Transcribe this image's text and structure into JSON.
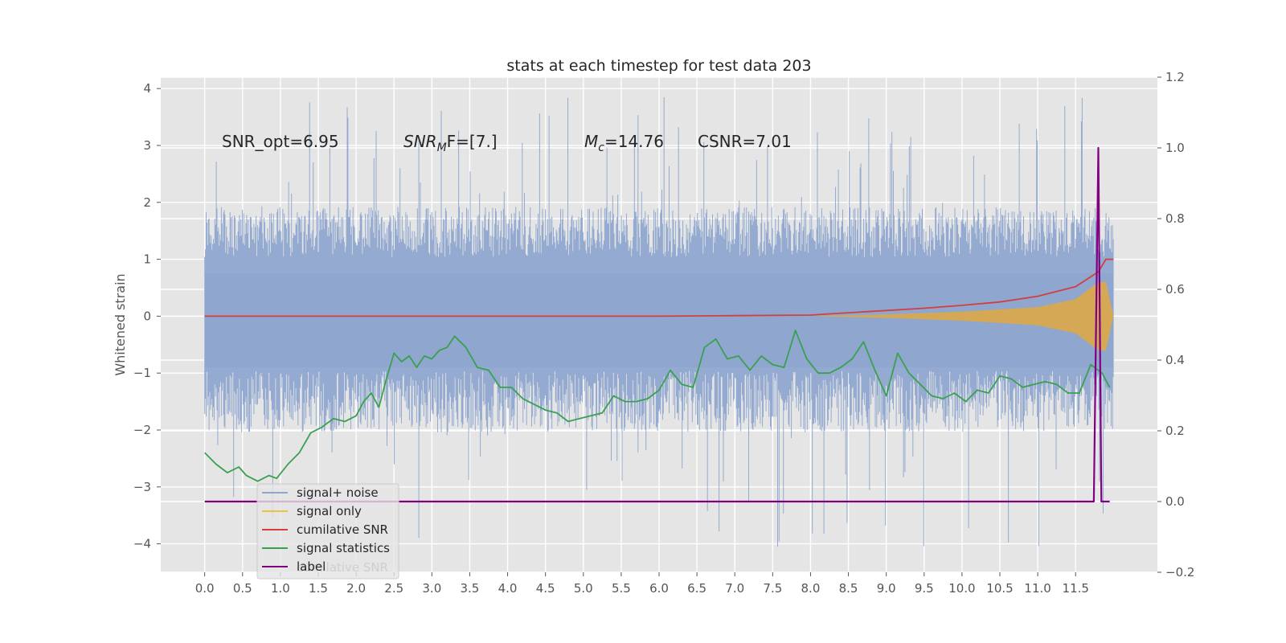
{
  "chart_data": {
    "type": "line",
    "title": "stats at each timestep for test data 203",
    "xlabel": "",
    "ylabel": "Whitened strain",
    "ylabel_right": "",
    "xlim": [
      -0.58,
      12.58
    ],
    "ylim": [
      -4.5,
      4.2
    ],
    "ylim_right": [
      -0.2,
      1.2
    ],
    "grid": true,
    "x_ticks": [
      "0.0",
      "0.5",
      "1.0",
      "1.5",
      "2.0",
      "2.5",
      "3.0",
      "3.5",
      "4.0",
      "4.5",
      "5.0",
      "5.5",
      "6.0",
      "6.5",
      "7.0",
      "7.5",
      "8.0",
      "8.5",
      "9.0",
      "9.5",
      "10.0",
      "10.5",
      "11.0",
      "11.5"
    ],
    "y_ticks_left": [
      "4",
      "3",
      "2",
      "1",
      "0",
      "−1",
      "−2",
      "−3",
      "−4"
    ],
    "y_ticks_right": [
      "1.2",
      "1.0",
      "0.8",
      "0.6",
      "0.4",
      "0.2",
      "0.0",
      "−0.2"
    ],
    "annotations": [
      {
        "text": "SNR_opt=6.95"
      },
      {
        "text": "SNR",
        "sub": "M",
        "tail": "F=[7.]"
      },
      {
        "text": "M",
        "sub": "c",
        "tail": "=14.76"
      },
      {
        "text": "CSNR=7.01"
      }
    ],
    "legend": {
      "placement": "lower-left",
      "items": [
        {
          "label": "signal+ noise",
          "color": "#8fa6cf"
        },
        {
          "label": "signal only",
          "color": "#f0c040"
        },
        {
          "label": "cumilative SNR",
          "color": "#d04040"
        },
        {
          "label": "signal statistics",
          "color": "#3aa050"
        },
        {
          "label": "label",
          "color": "#800080"
        }
      ],
      "ghost_text": "cumilative SNR"
    },
    "series": [
      {
        "name": "signal+ noise",
        "axis": "left",
        "color": "#8fa6cf",
        "x_range": [
          0.0,
          12.0
        ],
        "band_low": -1.2,
        "band_high": 1.6,
        "spike_max": 3.85,
        "spike_min": -4.1
      },
      {
        "name": "signal only",
        "axis": "left",
        "color": "#e0a840",
        "envelope": {
          "x": [
            8.0,
            9.0,
            10.0,
            11.0,
            11.5,
            11.8,
            11.9,
            12.0
          ],
          "amp": [
            0.0,
            0.03,
            0.08,
            0.16,
            0.3,
            0.6,
            0.6,
            0.0
          ]
        }
      },
      {
        "name": "cumilative SNR",
        "axis": "left",
        "color": "#d04040",
        "x": [
          0.0,
          6.0,
          7.0,
          8.0,
          8.5,
          9.0,
          9.5,
          10.0,
          10.5,
          11.0,
          11.5,
          11.8,
          11.9,
          12.0
        ],
        "y": [
          0.0,
          0.0,
          0.01,
          0.02,
          0.06,
          0.1,
          0.14,
          0.19,
          0.25,
          0.35,
          0.52,
          0.78,
          1.0,
          1.0
        ]
      },
      {
        "name": "signal statistics",
        "axis": "left",
        "color": "#3aa050",
        "x": [
          0.0,
          0.15,
          0.3,
          0.45,
          0.55,
          0.7,
          0.85,
          0.95,
          1.1,
          1.25,
          1.4,
          1.55,
          1.7,
          1.85,
          2.0,
          2.1,
          2.2,
          2.3,
          2.4,
          2.5,
          2.6,
          2.7,
          2.8,
          2.9,
          3.0,
          3.1,
          3.2,
          3.3,
          3.45,
          3.6,
          3.75,
          3.9,
          4.05,
          4.2,
          4.35,
          4.5,
          4.65,
          4.8,
          4.95,
          5.1,
          5.25,
          5.4,
          5.55,
          5.7,
          5.85,
          6.0,
          6.15,
          6.3,
          6.45,
          6.6,
          6.75,
          6.9,
          7.05,
          7.2,
          7.35,
          7.5,
          7.65,
          7.8,
          7.95,
          8.1,
          8.25,
          8.4,
          8.55,
          8.7,
          8.85,
          9.0,
          9.15,
          9.3,
          9.45,
          9.6,
          9.75,
          9.9,
          10.05,
          10.2,
          10.35,
          10.5,
          10.65,
          10.8,
          10.95,
          11.1,
          11.25,
          11.4,
          11.55,
          11.7,
          11.85,
          11.95
        ],
        "y": [
          -2.4,
          -2.6,
          -2.75,
          -2.65,
          -2.8,
          -2.9,
          -2.8,
          -2.85,
          -2.6,
          -2.4,
          -2.05,
          -1.95,
          -1.8,
          -1.85,
          -1.75,
          -1.5,
          -1.35,
          -1.6,
          -1.1,
          -0.65,
          -0.8,
          -0.7,
          -0.9,
          -0.7,
          -0.75,
          -0.6,
          -0.55,
          -0.35,
          -0.55,
          -0.9,
          -0.95,
          -1.25,
          -1.25,
          -1.45,
          -1.55,
          -1.65,
          -1.7,
          -1.85,
          -1.8,
          -1.75,
          -1.7,
          -1.4,
          -1.5,
          -1.5,
          -1.45,
          -1.3,
          -0.95,
          -1.2,
          -1.25,
          -0.55,
          -0.4,
          -0.75,
          -0.7,
          -0.95,
          -0.7,
          -0.85,
          -0.9,
          -0.25,
          -0.75,
          -1.0,
          -1.0,
          -0.9,
          -0.75,
          -0.45,
          -0.95,
          -1.4,
          -0.65,
          -1.0,
          -1.2,
          -1.4,
          -1.45,
          -1.35,
          -1.5,
          -1.3,
          -1.35,
          -1.05,
          -1.1,
          -1.25,
          -1.2,
          -1.15,
          -1.2,
          -1.35,
          -1.35,
          -0.85,
          -1.0,
          -1.25
        ]
      },
      {
        "name": "label",
        "axis": "right",
        "color": "#800080",
        "x": [
          0.0,
          11.74,
          11.8,
          11.84,
          11.87,
          11.95
        ],
        "y": [
          0.0,
          0.0,
          1.0,
          0.0,
          0.0,
          0.0
        ]
      }
    ]
  }
}
